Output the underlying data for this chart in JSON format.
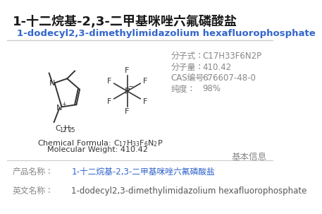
{
  "title_cn": "1-十二烷基-2,3-二甲基咪唑六氟磷酸盐",
  "title_en": "1-dodecyl2,3-dimethylimidazolium hexafluorophosphate",
  "mol_formula_label": "分子式：",
  "mol_formula_value": "C17H33F6N2P",
  "mol_weight_label": "分子量：",
  "mol_weight_value": "410.42",
  "cas_label": "CAS编号：",
  "cas_value": "676607-48-0",
  "purity_label": "纯度：",
  "purity_value": "98%",
  "section_label": "基本信息",
  "field1_label": "产品名称：",
  "field1_value": "1-十二烷基-2,3-二甲基咪唑六氟磷酸盐",
  "field2_label": "英文名称：",
  "field2_value": "1-dodecyl2,3-dimethylimidazolium hexafluorophosphate",
  "mol_weight_text": "Molecular Weight: 410.42",
  "bg_color": "#ffffff",
  "title_cn_color": "#1a1a1a",
  "title_en_color": "#3366cc",
  "label_color": "#888888",
  "value_color": "#888888",
  "section_color": "#888888",
  "field_label_color": "#888888",
  "field_value_cn_color": "#3366cc",
  "field_value_en_color": "#555555",
  "line_color": "#cccccc",
  "struct_color": "#333333"
}
